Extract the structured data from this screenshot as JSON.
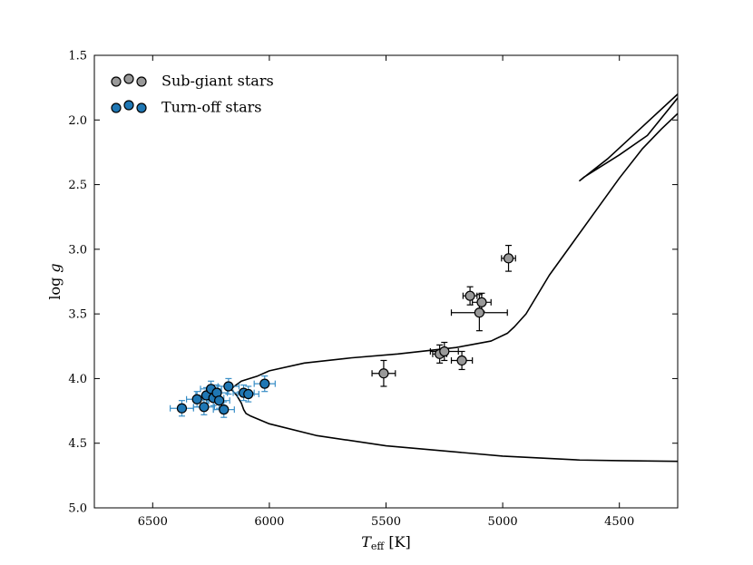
{
  "chart_data": {
    "type": "scatter",
    "title": "",
    "xlabel": {
      "main": "T",
      "sub": "eff",
      "unit": " [K]"
    },
    "ylabel": {
      "main": "log ",
      "var": "g"
    },
    "xlim": [
      6750,
      4250
    ],
    "ylim": [
      5.0,
      1.5
    ],
    "x_ticks": [
      6500,
      6000,
      5500,
      5000,
      4500
    ],
    "y_ticks": [
      1.5,
      2.0,
      2.5,
      3.0,
      3.5,
      4.0,
      4.5,
      5.0
    ],
    "x_tick_labels": [
      "6500",
      "6000",
      "5500",
      "5000",
      "4500"
    ],
    "y_tick_labels": [
      "1.5",
      "2.0",
      "2.5",
      "3.0",
      "3.5",
      "4.0",
      "4.5",
      "5.0"
    ],
    "grid": false,
    "legend_position": "top-left",
    "series": [
      {
        "name": "Sub-giant stars",
        "color": "#999999",
        "err_color": "#000000",
        "points": [
          {
            "x": 4975,
            "y": 3.07,
            "xerr": 30,
            "yerr": 0.1
          },
          {
            "x": 5140,
            "y": 3.36,
            "xerr": 30,
            "yerr": 0.07
          },
          {
            "x": 5090,
            "y": 3.41,
            "xerr": 40,
            "yerr": 0.07
          },
          {
            "x": 5100,
            "y": 3.49,
            "xerr": 120,
            "yerr": 0.14
          },
          {
            "x": 5270,
            "y": 3.81,
            "xerr": 30,
            "yerr": 0.07
          },
          {
            "x": 5250,
            "y": 3.79,
            "xerr": 60,
            "yerr": 0.07
          },
          {
            "x": 5175,
            "y": 3.86,
            "xerr": 45,
            "yerr": 0.07
          },
          {
            "x": 5510,
            "y": 3.96,
            "xerr": 50,
            "yerr": 0.1
          }
        ]
      },
      {
        "name": "Turn-off stars",
        "color": "#1f77b4",
        "err_color": "#3a8fc7",
        "points": [
          {
            "x": 6375,
            "y": 4.23,
            "xerr": 50,
            "yerr": 0.06
          },
          {
            "x": 6310,
            "y": 4.16,
            "xerr": 45,
            "yerr": 0.06
          },
          {
            "x": 6280,
            "y": 4.22,
            "xerr": 45,
            "yerr": 0.06
          },
          {
            "x": 6270,
            "y": 4.13,
            "xerr": 45,
            "yerr": 0.06
          },
          {
            "x": 6250,
            "y": 4.08,
            "xerr": 45,
            "yerr": 0.06
          },
          {
            "x": 6240,
            "y": 4.15,
            "xerr": 45,
            "yerr": 0.06
          },
          {
            "x": 6225,
            "y": 4.11,
            "xerr": 45,
            "yerr": 0.06
          },
          {
            "x": 6215,
            "y": 4.17,
            "xerr": 45,
            "yerr": 0.06
          },
          {
            "x": 6195,
            "y": 4.24,
            "xerr": 45,
            "yerr": 0.06
          },
          {
            "x": 6175,
            "y": 4.06,
            "xerr": 45,
            "yerr": 0.06
          },
          {
            "x": 6110,
            "y": 4.11,
            "xerr": 45,
            "yerr": 0.06
          },
          {
            "x": 6090,
            "y": 4.12,
            "xerr": 45,
            "yerr": 0.06
          },
          {
            "x": 6020,
            "y": 4.04,
            "xerr": 45,
            "yerr": 0.06
          }
        ]
      }
    ],
    "isochrone": [
      [
        4250,
        4.64
      ],
      [
        4500,
        4.635
      ],
      [
        4670,
        4.63
      ],
      [
        5000,
        4.6
      ],
      [
        5500,
        4.52
      ],
      [
        5800,
        4.44
      ],
      [
        6000,
        4.35
      ],
      [
        6080,
        4.29
      ],
      [
        6100,
        4.27
      ],
      [
        6110,
        4.24
      ],
      [
        6120,
        4.19
      ],
      [
        6140,
        4.13
      ],
      [
        6165,
        4.08
      ],
      [
        6120,
        4.02
      ],
      [
        6050,
        3.98
      ],
      [
        6000,
        3.94
      ],
      [
        5850,
        3.88
      ],
      [
        5650,
        3.84
      ],
      [
        5450,
        3.81
      ],
      [
        5200,
        3.76
      ],
      [
        5050,
        3.71
      ],
      [
        4980,
        3.65
      ],
      [
        4950,
        3.6
      ],
      [
        4900,
        3.5
      ],
      [
        4800,
        3.2
      ],
      [
        4700,
        2.95
      ],
      [
        4600,
        2.7
      ],
      [
        4500,
        2.45
      ],
      [
        4400,
        2.22
      ],
      [
        4320,
        2.07
      ],
      [
        4250,
        1.95
      ]
    ],
    "isochrone_rgb": [
      [
        4250,
        1.8
      ],
      [
        4400,
        2.05
      ],
      [
        4550,
        2.3
      ],
      [
        4670,
        2.47
      ],
      [
        4650,
        2.44
      ],
      [
        4500,
        2.27
      ],
      [
        4380,
        2.12
      ],
      [
        4250,
        1.83
      ]
    ]
  }
}
